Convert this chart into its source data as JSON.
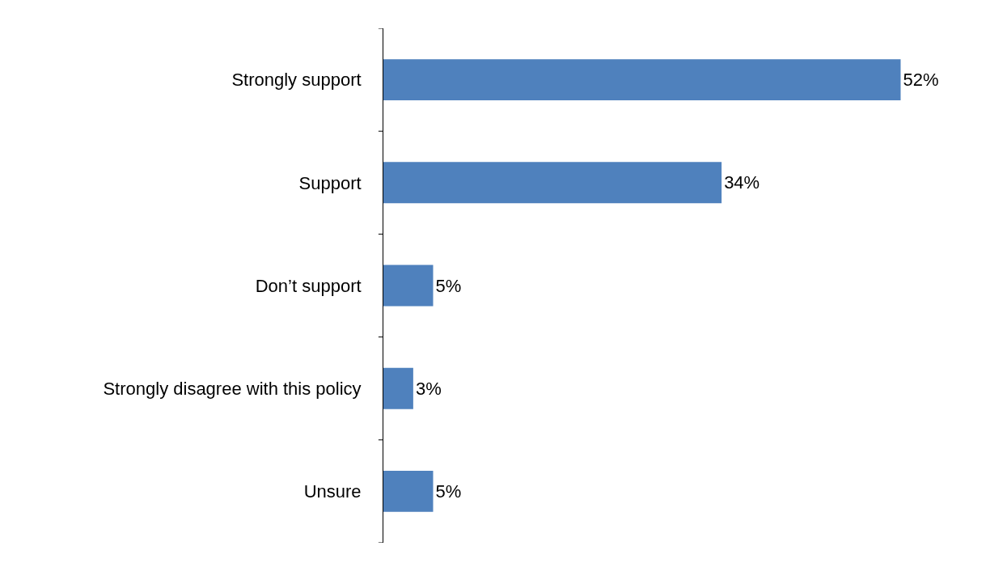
{
  "chart_data": {
    "type": "bar",
    "orientation": "horizontal",
    "categories": [
      "Strongly support",
      "Support",
      "Don’t support",
      "Strongly disagree with this policy",
      "Unsure"
    ],
    "values": [
      52,
      34,
      5,
      3,
      5
    ],
    "value_labels": [
      "52%",
      "34%",
      "5%",
      "3%",
      "5%"
    ],
    "color": "#4f81bd"
  }
}
